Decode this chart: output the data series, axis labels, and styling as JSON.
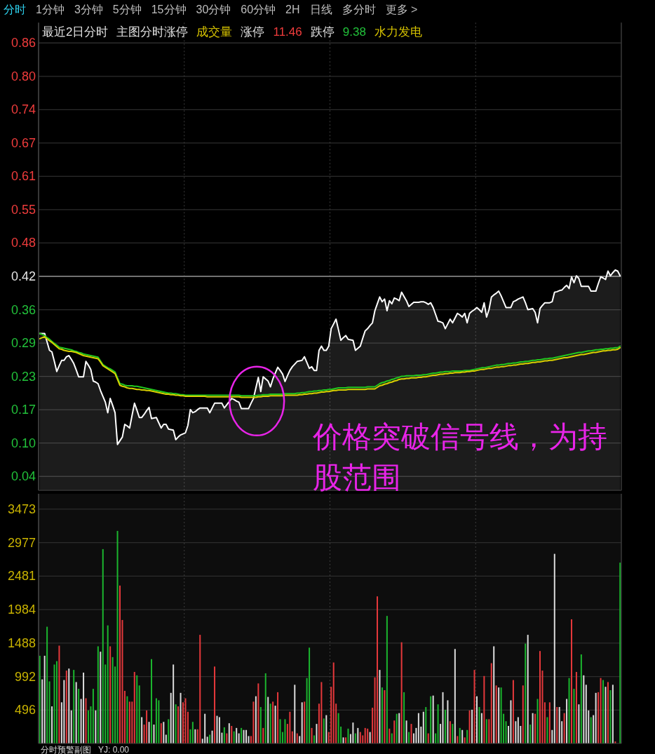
{
  "chart_data": [
    {
      "type": "line",
      "categories": [
        null,
        null,
        null,
        null,
        null,
        null,
        null,
        null,
        null,
        null,
        null,
        null,
        null,
        null,
        null,
        null,
        null,
        null,
        null,
        null,
        null,
        null,
        null,
        null,
        null,
        null,
        null,
        null,
        null,
        null,
        null,
        null,
        null,
        null,
        null,
        null,
        null,
        null,
        null,
        null,
        null,
        null,
        null,
        null,
        null,
        null,
        null,
        null,
        null,
        null,
        null,
        null,
        null,
        null,
        null,
        null,
        null,
        null,
        null,
        null,
        null,
        null,
        null,
        null,
        null,
        null,
        null,
        null,
        null,
        null,
        null,
        null,
        null,
        null,
        null,
        null,
        null,
        null,
        null,
        null,
        null,
        null,
        null,
        null,
        null,
        null,
        null,
        null,
        null,
        null,
        null,
        null,
        null,
        null,
        null,
        null,
        null,
        null,
        null,
        null,
        null,
        null,
        null,
        null,
        null,
        null,
        null,
        null,
        null,
        null,
        null,
        null,
        null,
        null,
        null,
        null,
        null,
        null,
        null,
        null,
        null,
        null,
        null,
        null,
        null,
        null,
        null,
        null,
        null,
        null,
        null,
        null,
        null,
        null,
        null,
        null,
        null,
        null,
        null,
        null,
        null,
        null,
        null,
        null,
        null,
        null,
        null,
        null,
        null,
        null,
        null,
        null,
        null,
        null,
        null,
        null,
        null,
        null,
        null,
        null,
        null,
        null,
        null,
        null,
        null,
        null,
        null,
        null,
        null,
        null,
        null,
        null,
        null,
        null,
        null,
        null,
        null,
        null,
        null,
        null,
        null,
        null,
        null,
        null,
        null,
        null,
        null,
        null,
        null,
        null,
        null,
        null,
        null,
        null,
        null,
        null,
        null,
        null,
        null,
        null,
        null,
        null,
        null,
        null,
        null,
        null,
        null,
        null,
        null,
        null,
        null,
        null,
        null,
        null,
        null,
        null,
        null,
        null,
        null,
        null,
        null,
        null,
        null,
        null,
        null,
        null,
        null,
        null,
        null,
        null,
        null,
        null,
        null,
        null,
        null,
        null,
        null,
        null,
        null,
        null
      ],
      "series": [
        {
          "type": "area",
          "color": "#ffffff",
          "values": [
            0.312,
            0.312,
            0.312,
            0.296,
            0.28,
            0.277,
            0.259,
            0.24,
            0.251,
            0.261,
            0.261,
            0.268,
            0.27,
            0.263,
            0.255,
            0.243,
            0.23,
            0.23,
            0.23,
            0.259,
            0.252,
            0.244,
            0.222,
            0.22,
            0.217,
            0.204,
            0.193,
            0.182,
            0.162,
            0.189,
            0.176,
            0.162,
            0.102,
            0.109,
            0.116,
            0.14,
            0.137,
            0.133,
            0.157,
            0.18,
            0.167,
            0.153,
            0.153,
            0.159,
            0.166,
            0.172,
            0.151,
            0.152,
            0.153,
            0.143,
            0.133,
            0.14,
            0.14,
            0.131,
            0.13,
            0.129,
            0.111,
            0.116,
            0.12,
            0.122,
            0.124,
            0.138,
            0.168,
            0.162,
            0.164,
            0.168,
            0.171,
            0.171,
            0.171,
            0.171,
            0.162,
            0.171,
            0.18,
            0.18,
            0.18,
            0.18,
            0.171,
            0.177,
            0.183,
            0.189,
            0.187,
            0.184,
            0.182,
            0.17,
            0.17,
            0.17,
            0.17,
            0.18,
            0.189,
            0.209,
            0.229,
            0.202,
            0.23,
            0.226,
            0.222,
            0.211,
            0.226,
            0.237,
            0.248,
            0.242,
            0.235,
            0.221,
            0.232,
            0.242,
            0.249,
            0.254,
            0.259,
            0.26,
            0.261,
            0.268,
            0.257,
            0.246,
            0.249,
            0.242,
            0.242,
            0.28,
            0.288,
            0.28,
            0.28,
            0.288,
            0.321,
            0.33,
            0.339,
            0.319,
            0.299,
            0.304,
            0.308,
            0.301,
            0.3,
            0.299,
            0.28,
            0.284,
            0.288,
            0.303,
            0.317,
            0.321,
            0.327,
            0.332,
            0.355,
            0.368,
            0.381,
            0.372,
            0.377,
            0.355,
            0.374,
            0.368,
            0.379,
            0.377,
            0.374,
            0.39,
            0.382,
            0.374,
            0.363,
            0.367,
            0.371,
            0.371,
            0.371,
            0.372,
            0.372,
            0.37,
            0.367,
            0.37,
            0.361,
            0.348,
            0.335,
            0.334,
            0.332,
            0.321,
            0.33,
            0.339,
            0.332,
            0.341,
            0.35,
            0.347,
            0.343,
            0.35,
            0.332,
            0.35,
            0.354,
            0.357,
            0.361,
            0.357,
            0.352,
            0.37,
            0.343,
            0.357,
            0.381,
            0.385,
            0.388,
            0.392,
            0.383,
            0.372,
            0.361,
            0.361,
            0.361,
            0.372,
            0.374,
            0.377,
            0.379,
            0.381,
            0.37,
            0.357,
            0.358,
            0.359,
            0.352,
            0.332,
            0.359,
            0.365,
            0.37,
            0.37,
            0.37,
            0.372,
            0.39,
            0.391,
            0.393,
            0.394,
            0.399,
            0.403,
            0.397,
            0.419,
            0.408,
            0.421,
            0.416,
            0.401,
            0.401,
            0.401,
            0.401,
            0.392,
            0.392,
            0.392,
            0.406,
            0.419,
            0.417,
            0.414,
            0.43,
            0.421,
            0.427,
            0.432,
            0.43,
            0.421
          ]
        },
        {
          "color": "#22c81e",
          "values": [
            0.312,
            0.31,
            0.308,
            0.304,
            0.301,
            0.297,
            0.293,
            0.29,
            0.286,
            0.285,
            0.284,
            0.283,
            0.282,
            0.281,
            0.279,
            0.278,
            0.276,
            0.275,
            0.273,
            0.272,
            0.271,
            0.27,
            0.269,
            0.268,
            0.267,
            0.26,
            0.253,
            0.25,
            0.247,
            0.245,
            0.242,
            0.239,
            0.228,
            0.217,
            0.216,
            0.214,
            0.213,
            0.213,
            0.213,
            0.212,
            0.212,
            0.211,
            0.21,
            0.209,
            0.208,
            0.207,
            0.206,
            0.205,
            0.204,
            0.203,
            0.202,
            0.201,
            0.2,
            0.199,
            0.199,
            0.198,
            0.198,
            0.197,
            0.196,
            0.196,
            0.195,
            0.195,
            0.195,
            0.195,
            0.195,
            0.195,
            0.195,
            0.195,
            0.195,
            0.195,
            0.195,
            0.195,
            0.195,
            0.195,
            0.195,
            0.195,
            0.195,
            0.195,
            0.195,
            0.195,
            0.195,
            0.195,
            0.195,
            0.194,
            0.194,
            0.194,
            0.194,
            0.194,
            0.194,
            0.194,
            0.195,
            0.195,
            0.196,
            0.196,
            0.196,
            0.197,
            0.197,
            0.197,
            0.197,
            0.197,
            0.197,
            0.198,
            0.198,
            0.198,
            0.198,
            0.198,
            0.199,
            0.199,
            0.2,
            0.2,
            0.201,
            0.202,
            0.202,
            0.203,
            0.203,
            0.204,
            0.204,
            0.205,
            0.205,
            0.206,
            0.206,
            0.207,
            0.208,
            0.209,
            0.209,
            0.209,
            0.209,
            0.21,
            0.21,
            0.21,
            0.21,
            0.21,
            0.21,
            0.21,
            0.21,
            0.211,
            0.211,
            0.211,
            0.211,
            0.214,
            0.217,
            0.219,
            0.22,
            0.222,
            0.223,
            0.225,
            0.226,
            0.228,
            0.229,
            0.231,
            0.231,
            0.232,
            0.232,
            0.232,
            0.232,
            0.233,
            0.233,
            0.233,
            0.234,
            0.234,
            0.235,
            0.236,
            0.237,
            0.237,
            0.238,
            0.239,
            0.239,
            0.24,
            0.24,
            0.24,
            0.241,
            0.241,
            0.241,
            0.241,
            0.241,
            0.242,
            0.242,
            0.242,
            0.243,
            0.244,
            0.245,
            0.246,
            0.247,
            0.247,
            0.248,
            0.249,
            0.25,
            0.251,
            0.252,
            0.252,
            0.253,
            0.253,
            0.254,
            0.255,
            0.255,
            0.256,
            0.256,
            0.257,
            0.258,
            0.258,
            0.259,
            0.259,
            0.26,
            0.261,
            0.261,
            0.262,
            0.262,
            0.263,
            0.264,
            0.264,
            0.265,
            0.265,
            0.266,
            0.267,
            0.268,
            0.269,
            0.27,
            0.271,
            0.272,
            0.273,
            0.274,
            0.275,
            0.276,
            0.276,
            0.277,
            0.278,
            0.279,
            0.279,
            0.28,
            0.281,
            0.281,
            0.282,
            0.282,
            0.283,
            0.283,
            0.284,
            0.284,
            0.285,
            0.285,
            0.288
          ]
        },
        {
          "color": "#d8d000",
          "values": [
            0.302,
            0.304,
            0.306,
            0.302,
            0.298,
            0.295,
            0.291,
            0.287,
            0.283,
            0.282,
            0.28,
            0.279,
            0.278,
            0.278,
            0.277,
            0.276,
            0.274,
            0.272,
            0.27,
            0.269,
            0.268,
            0.267,
            0.266,
            0.265,
            0.264,
            0.258,
            0.251,
            0.248,
            0.245,
            0.242,
            0.239,
            0.236,
            0.225,
            0.214,
            0.212,
            0.211,
            0.209,
            0.208,
            0.208,
            0.207,
            0.206,
            0.206,
            0.205,
            0.205,
            0.204,
            0.204,
            0.203,
            0.202,
            0.201,
            0.2,
            0.199,
            0.198,
            0.197,
            0.197,
            0.196,
            0.196,
            0.195,
            0.195,
            0.194,
            0.194,
            0.193,
            0.193,
            0.193,
            0.193,
            0.193,
            0.193,
            0.193,
            0.193,
            0.193,
            0.192,
            0.192,
            0.192,
            0.192,
            0.192,
            0.192,
            0.192,
            0.192,
            0.192,
            0.192,
            0.192,
            0.192,
            0.192,
            0.192,
            0.191,
            0.191,
            0.191,
            0.191,
            0.191,
            0.191,
            0.191,
            0.192,
            0.192,
            0.193,
            0.193,
            0.193,
            0.194,
            0.194,
            0.194,
            0.194,
            0.194,
            0.194,
            0.195,
            0.195,
            0.195,
            0.195,
            0.195,
            0.195,
            0.196,
            0.196,
            0.197,
            0.197,
            0.198,
            0.198,
            0.199,
            0.199,
            0.2,
            0.201,
            0.201,
            0.202,
            0.202,
            0.203,
            0.204,
            0.204,
            0.205,
            0.205,
            0.205,
            0.205,
            0.206,
            0.206,
            0.206,
            0.206,
            0.206,
            0.206,
            0.206,
            0.206,
            0.207,
            0.207,
            0.207,
            0.207,
            0.21,
            0.213,
            0.214,
            0.216,
            0.217,
            0.219,
            0.22,
            0.222,
            0.223,
            0.225,
            0.226,
            0.226,
            0.227,
            0.227,
            0.228,
            0.228,
            0.228,
            0.229,
            0.229,
            0.23,
            0.23,
            0.231,
            0.232,
            0.233,
            0.233,
            0.234,
            0.235,
            0.235,
            0.236,
            0.236,
            0.237,
            0.237,
            0.238,
            0.238,
            0.238,
            0.239,
            0.239,
            0.24,
            0.24,
            0.241,
            0.241,
            0.242,
            0.243,
            0.244,
            0.244,
            0.245,
            0.246,
            0.246,
            0.247,
            0.248,
            0.248,
            0.249,
            0.249,
            0.25,
            0.251,
            0.251,
            0.252,
            0.252,
            0.253,
            0.254,
            0.254,
            0.255,
            0.255,
            0.256,
            0.257,
            0.257,
            0.258,
            0.258,
            0.259,
            0.26,
            0.26,
            0.261,
            0.261,
            0.262,
            0.263,
            0.264,
            0.265,
            0.266,
            0.266,
            0.267,
            0.268,
            0.269,
            0.27,
            0.271,
            0.272,
            0.272,
            0.273,
            0.274,
            0.275,
            0.276,
            0.276,
            0.277,
            0.278,
            0.279,
            0.279,
            0.28,
            0.28,
            0.281,
            0.281,
            0.282,
            0.285
          ]
        }
      ],
      "ylim": [
        0.015,
        0.9
      ],
      "yticks": [
        {
          "value": 0.8616,
          "label": "0.86"
        },
        {
          "value": 0.7985,
          "label": "0.80"
        },
        {
          "value": 0.7354,
          "label": "0.74"
        },
        {
          "value": 0.6723,
          "label": "0.67"
        },
        {
          "value": 0.6092,
          "label": "0.61"
        },
        {
          "value": 0.5462,
          "label": "0.55"
        },
        {
          "value": 0.4831,
          "label": "0.48"
        },
        0.42,
        {
          "value": 0.3569,
          "label": "0.36"
        },
        {
          "value": 0.2938,
          "label": "0.29"
        },
        {
          "value": 0.2308,
          "label": "0.23"
        },
        {
          "value": 0.1677,
          "label": "0.17"
        },
        {
          "value": 0.1046,
          "label": "0.10"
        },
        {
          "value": 0.0415,
          "label": "0.04"
        }
      ],
      "ref_lines": [
        {
          "axis": "y",
          "value": 0.42,
          "color": "#8c8c8c"
        }
      ],
      "grid": true,
      "tick_labels": "y",
      "annotations": [
        "分时",
        "1分钟",
        "3分钟",
        "5分钟",
        "15分钟",
        "30分钟",
        "60分钟",
        "2H",
        "日线",
        "多分时",
        "更多 >",
        "最近2日分时",
        "主图分时涨停",
        "成交量",
        "涨停",
        "11.46",
        "跌停",
        "9.38",
        "水力发电",
        "价格突破信号线，为持股范围"
      ]
    },
    {
      "type": "bar",
      "categories": [
        null,
        null,
        null,
        null,
        null,
        null,
        null,
        null,
        null,
        null,
        null,
        null,
        null,
        null,
        null,
        null,
        null,
        null,
        null,
        null,
        null,
        null,
        null,
        null,
        null,
        null,
        null,
        null,
        null,
        null,
        null,
        null,
        null,
        null,
        null,
        null,
        null,
        null,
        null,
        null,
        null,
        null,
        null,
        null,
        null,
        null,
        null,
        null,
        null,
        null,
        null,
        null,
        null,
        null,
        null,
        null,
        null,
        null,
        null,
        null,
        null,
        null,
        null,
        null,
        null,
        null,
        null,
        null,
        null,
        null,
        null,
        null,
        null,
        null,
        null,
        null,
        null,
        null,
        null,
        null,
        null,
        null,
        null,
        null,
        null,
        null,
        null,
        null,
        null,
        null,
        null,
        null,
        null,
        null,
        null,
        null,
        null,
        null,
        null,
        null,
        null,
        null,
        null,
        null,
        null,
        null,
        null,
        null,
        null,
        null,
        null,
        null,
        null,
        null,
        null,
        null,
        null,
        null,
        null,
        null,
        null,
        null,
        null,
        null,
        null,
        null,
        null,
        null,
        null,
        null,
        null,
        null,
        null,
        null,
        null,
        null,
        null,
        null,
        null,
        null,
        null,
        null,
        null,
        null,
        null,
        null,
        null,
        null,
        null,
        null,
        null,
        null,
        null,
        null,
        null,
        null,
        null,
        null,
        null,
        null,
        null,
        null,
        null,
        null,
        null,
        null,
        null,
        null,
        null,
        null,
        null,
        null,
        null,
        null,
        null,
        null,
        null,
        null,
        null,
        null,
        null,
        null,
        null,
        null,
        null,
        null,
        null,
        null,
        null,
        null,
        null,
        null,
        null,
        null,
        null,
        null,
        null,
        null,
        null,
        null,
        null,
        null,
        null,
        null,
        null,
        null,
        null,
        null,
        null,
        null,
        null,
        null,
        null,
        null,
        null,
        null,
        null,
        null,
        null,
        null,
        null,
        null,
        null,
        null,
        null,
        null,
        null,
        null,
        null,
        null,
        null,
        null,
        null,
        null,
        null,
        null,
        null,
        null,
        null,
        null
      ],
      "values": [
        1300,
        950,
        1300,
        1730,
        920,
        550,
        1170,
        1220,
        1450,
        610,
        940,
        1080,
        1110,
        490,
        1090,
        910,
        810,
        660,
        1050,
        670,
        490,
        550,
        810,
        490,
        1440,
        1360,
        2880,
        1170,
        1750,
        1440,
        1280,
        1140,
        3150,
        2340,
        1830,
        780,
        700,
        620,
        620,
        1060,
        1010,
        860,
        390,
        280,
        490,
        320,
        1250,
        280,
        670,
        640,
        300,
        320,
        130,
        360,
        750,
        1170,
        580,
        550,
        750,
        610,
        670,
        470,
        210,
        320,
        210,
        210,
        1610,
        70,
        440,
        100,
        130,
        190,
        1140,
        410,
        390,
        160,
        240,
        150,
        300,
        260,
        180,
        230,
        150,
        230,
        200,
        200,
        110,
        110,
        620,
        700,
        890,
        540,
        230,
        1040,
        690,
        590,
        620,
        560,
        760,
        360,
        170,
        360,
        290,
        470,
        180,
        870,
        150,
        110,
        610,
        620,
        970,
        1420,
        230,
        120,
        290,
        590,
        910,
        370,
        420,
        170,
        840,
        1200,
        590,
        450,
        250,
        90,
        90,
        220,
        140,
        310,
        150,
        230,
        170,
        120,
        230,
        220,
        170,
        530,
        980,
        2180,
        1090,
        830,
        790,
        1890,
        220,
        150,
        340,
        440,
        450,
        1500,
        760,
        340,
        170,
        290,
        150,
        230,
        450,
        250,
        470,
        540,
        150,
        700,
        710,
        150,
        580,
        290,
        760,
        500,
        640,
        330,
        290,
        1400,
        110,
        230,
        200,
        90,
        200,
        490,
        500,
        1090,
        700,
        540,
        450,
        1000,
        360,
        360,
        1190,
        1440,
        860,
        830,
        830,
        440,
        330,
        260,
        640,
        940,
        330,
        390,
        260,
        860,
        1480,
        1610,
        280,
        450,
        440,
        660,
        1370,
        1080,
        610,
        390,
        610,
        200,
        2810,
        540,
        540,
        330,
        450,
        660,
        970,
        1840,
        810,
        1060,
        580,
        1320,
        1010,
        870,
        490,
        390,
        420,
        750,
        760,
        970,
        940,
        840,
        910,
        790,
        870,
        30,
        null,
        2680
      ],
      "colors": [
        "#1bb52e",
        "#dcdcdc",
        "#dcdcdc",
        "#1bb52e",
        "#1bb52e",
        "#dcdcdc",
        "#1bb52e",
        "#1bb52e",
        "#e5383b",
        "#dcdcdc",
        "#dcdcdc",
        "#e5383b",
        "#dcdcdc",
        "#dcdcdc",
        "#1bb52e",
        "#dcdcdc",
        "#1bb52e",
        "#dcdcdc",
        "#dcdcdc",
        "#e5383b",
        "#1bb52e",
        "#1bb52e",
        "#1bb52e",
        "#dcdcdc",
        "#1bb52e",
        "#dcdcdc",
        "#1bb52e",
        "#1bb52e",
        "#1bb52e",
        "#e5383b",
        "#1bb52e",
        "#1bb52e",
        "#1bb52e",
        "#e5383b",
        "#e5383b",
        "#e5383b",
        "#1bb52e",
        "#e5383b",
        "#e5383b",
        "#e5383b",
        "#1bb52e",
        "#1bb52e",
        "#dcdcdc",
        "#e5383b",
        "#e5383b",
        "#dcdcdc",
        "#1bb52e",
        "#dcdcdc",
        "#1bb52e",
        "#1bb52e",
        "#e5383b",
        "#dcdcdc",
        "#dcdcdc",
        "#1bb52e",
        "#dcdcdc",
        "#dcdcdc",
        "#1bb52e",
        "#e5383b",
        "#dcdcdc",
        "#e5383b",
        "#e5383b",
        "#e5383b",
        "#1bb52e",
        "#1bb52e",
        "#dcdcdc",
        "#e5383b",
        "#e5383b",
        "#dcdcdc",
        "#dcdcdc",
        "#dcdcdc",
        "#1bb52e",
        "#dcdcdc",
        "#e5383b",
        "#dcdcdc",
        "#dcdcdc",
        "#dcdcdc",
        "#1bb52e",
        "#e5383b",
        "#dcdcdc",
        "#e5383b",
        "#1bb52e",
        "#dcdcdc",
        "#dcdcdc",
        "#1bb52e",
        "#dcdcdc",
        "#dcdcdc",
        "#dcdcdc",
        "#e5383b",
        "#e5383b",
        "#dcdcdc",
        "#e5383b",
        "#1bb52e",
        "#e5383b",
        "#1bb52e",
        "#dcdcdc",
        "#1bb52e",
        "#e5383b",
        "#dcdcdc",
        "#e5383b",
        "#1bb52e",
        "#1bb52e",
        "#1bb52e",
        "#e5383b",
        "#e5383b",
        "#e5383b",
        "#dcdcdc",
        "#e5383b",
        "#dcdcdc",
        "#dcdcdc",
        "#e5383b",
        "#1bb52e",
        "#1bb52e",
        "#e5383b",
        "#1bb52e",
        "#dcdcdc",
        "#e5383b",
        "#e5383b",
        "#1bb52e",
        "#dcdcdc",
        "#e5383b",
        "#e5383b",
        "#e5383b",
        "#e5383b",
        "#1bb52e",
        "#1bb52e",
        "#dcdcdc",
        "#e5383b",
        "#1bb52e",
        "#dcdcdc",
        "#dcdcdc",
        "#1bb52e",
        "#dcdcdc",
        "#e5383b",
        "#e5383b",
        "#e5383b",
        "#e5383b",
        "#dcdcdc",
        "#e5383b",
        "#e5383b",
        "#e5383b",
        "#dcdcdc",
        "#1bb52e",
        "#e5383b",
        "#1bb52e",
        "#e5383b",
        "#1bb52e",
        "#e5383b",
        "#1bb52e",
        "#dcdcdc",
        "#e5383b",
        "#1bb52e",
        "#dcdcdc",
        "#1bb52e",
        "#e5383b",
        "#dcdcdc",
        "#dcdcdc",
        "#dcdcdc",
        "#dcdcdc",
        "#dcdcdc",
        "#1bb52e",
        "#e5383b",
        "#1bb52e",
        "#dcdcdc",
        "#1bb52e",
        "#1bb52e",
        "#dcdcdc",
        "#dcdcdc",
        "#1bb52e",
        "#dcdcdc",
        "#e5383b",
        "#1bb52e",
        "#dcdcdc",
        "#e5383b",
        "#1bb52e",
        "#dcdcdc",
        "#e5383b",
        "#1bb52e",
        "#e5383b",
        "#dcdcdc",
        "#e5383b",
        "#dcdcdc",
        "#1bb52e",
        "#dcdcdc",
        "#e5383b",
        "#1bb52e",
        "#e5383b",
        "#e5383b",
        "#dcdcdc",
        "#e5383b",
        "#dcdcdc",
        "#1bb52e",
        "#1bb52e",
        "#1bb52e",
        "#dcdcdc",
        "#dcdcdc",
        "#e5383b",
        "#dcdcdc",
        "#dcdcdc",
        "#dcdcdc",
        "#e5383b",
        "#1bb52e",
        "#dcdcdc",
        "#1bb52e",
        "#dcdcdc",
        "#e5383b",
        "#1bb52e",
        "#e5383b",
        "#e5383b",
        "#e5383b",
        "#1bb52e",
        "#e5383b",
        "#dcdcdc",
        "#dcdcdc",
        "#e5383b",
        "#dcdcdc",
        "#dcdcdc",
        "#e5383b",
        "#dcdcdc",
        "#1bb52e",
        "#e5383b",
        "#1bb52e",
        "#e5383b",
        "#dcdcdc",
        "#1bb52e",
        "#dcdcdc",
        "#dcdcdc",
        "#dcdcdc",
        "#1bb52e",
        "#dcdcdc",
        "#dcdcdc",
        "#e5383b",
        "#e5383b",
        "#1bb52e",
        "#dcdcdc",
        "#e5383b",
        "#1bb52e",
        "#dcdcdc",
        "#e5383b",
        null,
        "#1bb52e"
      ],
      "ylim": [
        0,
        3700
      ],
      "yticks": [
        496,
        992,
        1488,
        1984,
        2481,
        2977,
        3473
      ],
      "grid": true,
      "tick_labels": "y",
      "annotations": [
        "分时预警副图",
        "YJ: 0.00"
      ]
    }
  ]
}
